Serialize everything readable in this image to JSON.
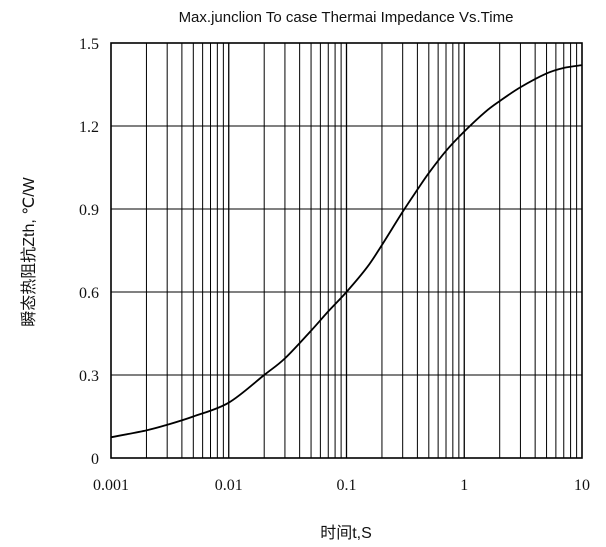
{
  "chart_data": {
    "type": "line",
    "title": "Max.junclion To case Thermai Impedance Vs.Time",
    "xlabel": "时间t,S",
    "ylabel": "瞬态热阻抗Zth, ℃/W",
    "x_scale": "log",
    "xlim": [
      0.001,
      10
    ],
    "ylim": [
      0,
      1.5
    ],
    "grid": true,
    "x_tick_labels": [
      "0.001",
      "0.01",
      "0.1",
      "1",
      "10"
    ],
    "y_tick_labels": [
      "0",
      "0.3",
      "0.6",
      "0.9",
      "1.2",
      "1.5"
    ],
    "series": [
      {
        "color": "#000000",
        "x": [
          0.001,
          0.002,
          0.003,
          0.005,
          0.01,
          0.02,
          0.03,
          0.05,
          0.07,
          0.1,
          0.15,
          0.2,
          0.3,
          0.4,
          0.5,
          0.7,
          1,
          1.5,
          2,
          3,
          5,
          7,
          10
        ],
        "y": [
          0.075,
          0.1,
          0.12,
          0.15,
          0.2,
          0.3,
          0.36,
          0.46,
          0.53,
          0.6,
          0.69,
          0.77,
          0.89,
          0.97,
          1.03,
          1.11,
          1.18,
          1.25,
          1.29,
          1.34,
          1.39,
          1.41,
          1.42
        ]
      }
    ]
  }
}
